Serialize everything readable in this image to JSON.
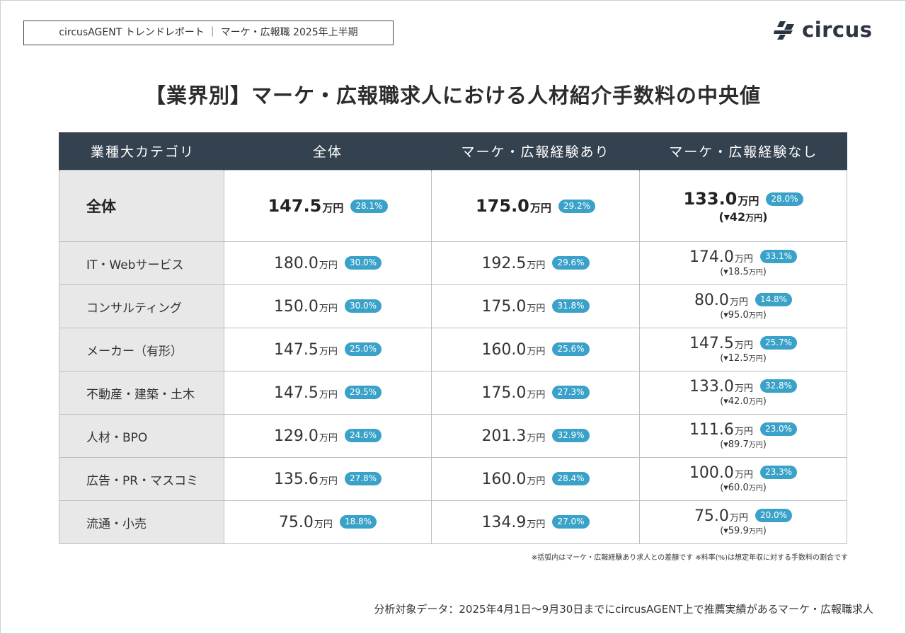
{
  "header": {
    "report_label": "circusAGENT トレンドレポート ｜ マーケ・広報職 2025年上半期",
    "logo_text": "circus"
  },
  "title": "【業界別】マーケ・広報職求人における人材紹介手数料の中央値",
  "table": {
    "columns": [
      "業種大カテゴリ",
      "全体",
      "マーケ・広報経験あり",
      "マーケ・広報経験なし"
    ],
    "unit": "万円",
    "rows": [
      {
        "category": "全体",
        "all": {
          "value": "147.5",
          "rate": "28.1%"
        },
        "exp": {
          "value": "175.0",
          "rate": "29.2%"
        },
        "noexp": {
          "value": "133.0",
          "rate": "28.0%",
          "diff_open": "(▾42",
          "diff_close": ")"
        }
      },
      {
        "category": "IT・Webサービス",
        "all": {
          "value": "180.0",
          "rate": "30.0%"
        },
        "exp": {
          "value": "192.5",
          "rate": "29.6%"
        },
        "noexp": {
          "value": "174.0",
          "rate": "33.1%",
          "diff_open": "(▾18.5",
          "diff_close": ")"
        }
      },
      {
        "category": "コンサルティング",
        "all": {
          "value": "150.0",
          "rate": "30.0%"
        },
        "exp": {
          "value": "175.0",
          "rate": "31.8%"
        },
        "noexp": {
          "value": "80.0",
          "rate": "14.8%",
          "diff_open": "(▾95.0",
          "diff_close": ")"
        }
      },
      {
        "category": "メーカー（有形）",
        "all": {
          "value": "147.5",
          "rate": "25.0%"
        },
        "exp": {
          "value": "160.0",
          "rate": "25.6%"
        },
        "noexp": {
          "value": "147.5",
          "rate": "25.7%",
          "diff_open": "(▾12.5",
          "diff_close": ")"
        }
      },
      {
        "category": "不動産・建築・土木",
        "all": {
          "value": "147.5",
          "rate": "29.5%"
        },
        "exp": {
          "value": "175.0",
          "rate": "27.3%"
        },
        "noexp": {
          "value": "133.0",
          "rate": "32.8%",
          "diff_open": "(▾42.0",
          "diff_close": ")"
        }
      },
      {
        "category": "人材・BPO",
        "all": {
          "value": "129.0",
          "rate": "24.6%"
        },
        "exp": {
          "value": "201.3",
          "rate": "32.9%"
        },
        "noexp": {
          "value": "111.6",
          "rate": "23.0%",
          "diff_open": "(▾89.7",
          "diff_close": ")"
        }
      },
      {
        "category": "広告・PR・マスコミ",
        "all": {
          "value": "135.6",
          "rate": "27.8%"
        },
        "exp": {
          "value": "160.0",
          "rate": "28.4%"
        },
        "noexp": {
          "value": "100.0",
          "rate": "23.3%",
          "diff_open": "(▾60.0",
          "diff_close": ")"
        }
      },
      {
        "category": "流通・小売",
        "all": {
          "value": "75.0",
          "rate": "18.8%"
        },
        "exp": {
          "value": "134.9",
          "rate": "27.0%"
        },
        "noexp": {
          "value": "75.0",
          "rate": "20.0%",
          "diff_open": "(▾59.9",
          "diff_close": ")"
        }
      }
    ]
  },
  "note": "※括弧内はマーケ・広報経験あり求人との差額です ※料率(%)は想定年収に対する手数料の割合です",
  "source": "分析対象データ：2025年4月1日〜9月30日までにcircusAGENT上で推薦実績があるマーケ・広報職求人",
  "colors": {
    "header_bg": "#34424f",
    "pill": "#3aa2c8",
    "category_bg": "#e8e8e8"
  }
}
